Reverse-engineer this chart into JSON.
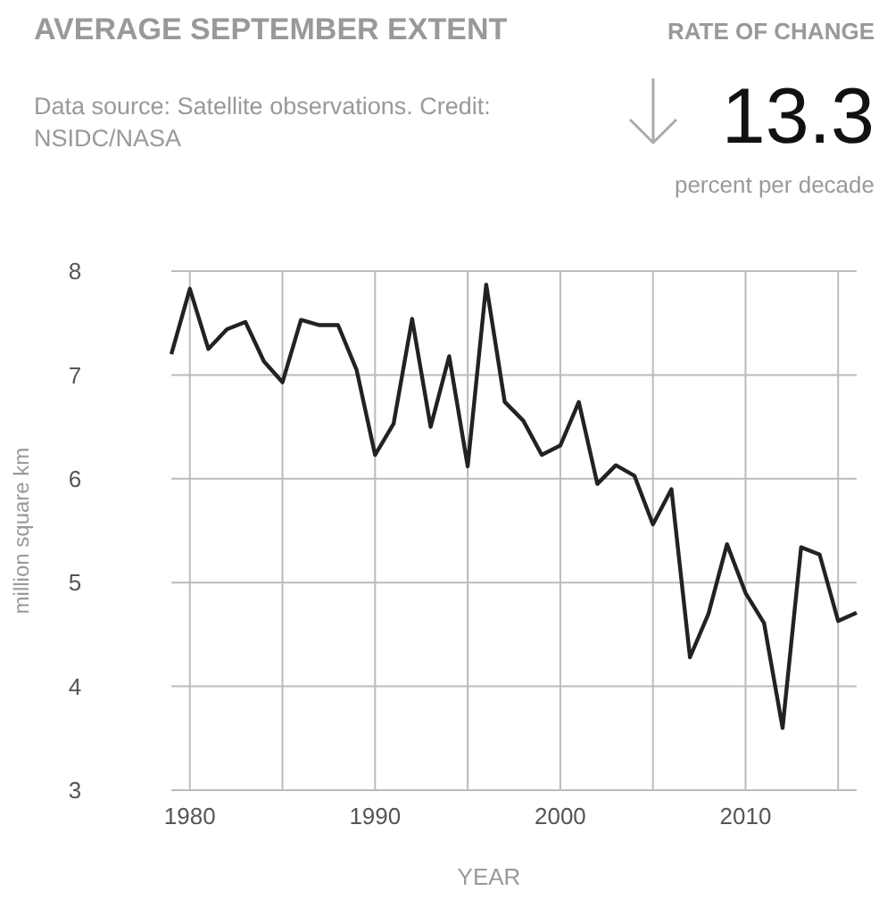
{
  "chart_data": {
    "type": "line",
    "title": "AVERAGE SEPTEMBER EXTENT",
    "xlabel": "YEAR",
    "ylabel": "million square km",
    "annotations": [
      "RATE OF CHANGE",
      "13.3",
      "percent per decade",
      "Data source: Satellite observations. Credit: NSIDC/NASA"
    ],
    "x": [
      1979,
      1980,
      1981,
      1982,
      1983,
      1984,
      1985,
      1986,
      1987,
      1988,
      1989,
      1990,
      1991,
      1992,
      1993,
      1994,
      1995,
      1996,
      1997,
      1998,
      1999,
      2000,
      2001,
      2002,
      2003,
      2004,
      2005,
      2006,
      2007,
      2008,
      2009,
      2010,
      2011,
      2012,
      2013,
      2014,
      2015,
      2016
    ],
    "series": [
      {
        "color": "#222222",
        "values": [
          7.2,
          7.83,
          7.25,
          7.44,
          7.51,
          7.13,
          6.93,
          7.53,
          7.48,
          7.48,
          7.05,
          6.23,
          6.53,
          7.54,
          6.5,
          7.18,
          6.12,
          7.87,
          6.74,
          6.56,
          6.23,
          6.32,
          6.74,
          5.95,
          6.13,
          6.03,
          5.56,
          5.9,
          4.28,
          4.7,
          5.37,
          4.9,
          4.61,
          3.6,
          5.34,
          5.27,
          4.63,
          4.71
        ]
      }
    ],
    "xlim": [
      1979,
      2016
    ],
    "ylim": [
      3,
      8
    ],
    "xticks": [
      1980,
      {
        "value": 1985,
        "label": null
      },
      1990,
      {
        "value": 1995,
        "label": null
      },
      2000,
      {
        "value": 2005,
        "label": null
      },
      2010,
      {
        "value": 2015,
        "label": null
      }
    ],
    "yticks": [
      3,
      4,
      5,
      6,
      7,
      8
    ],
    "grid": true,
    "marker": "none",
    "line_style": "solid"
  }
}
